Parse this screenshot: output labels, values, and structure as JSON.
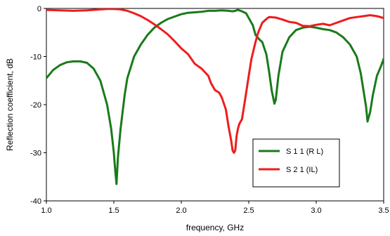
{
  "chart_data": {
    "type": "line",
    "title": "",
    "xlabel": "frequency, GHz",
    "ylabel": "Reflection coefficient, dB",
    "xlim": [
      1.0,
      3.5
    ],
    "ylim": [
      -40,
      0
    ],
    "x_ticks": [
      "1.0",
      "1.5",
      "2.0",
      "2.5",
      "3.0",
      "3.5"
    ],
    "y_ticks": [
      "0",
      "-10",
      "-20",
      "-30",
      "-40"
    ],
    "grid": false,
    "legend_position": "bottom-right inside plot",
    "series": [
      {
        "name": "S 1 1 (R L)",
        "color": "#1a7a1a",
        "x": [
          1.0,
          1.05,
          1.1,
          1.15,
          1.2,
          1.25,
          1.3,
          1.35,
          1.4,
          1.45,
          1.48,
          1.5,
          1.51,
          1.52,
          1.53,
          1.55,
          1.58,
          1.6,
          1.65,
          1.7,
          1.75,
          1.8,
          1.85,
          1.9,
          1.95,
          2.0,
          2.05,
          2.1,
          2.15,
          2.2,
          2.25,
          2.3,
          2.35,
          2.38,
          2.4,
          2.42,
          2.45,
          2.48,
          2.5,
          2.53,
          2.55,
          2.58,
          2.6,
          2.63,
          2.65,
          2.67,
          2.69,
          2.7,
          2.72,
          2.75,
          2.8,
          2.85,
          2.9,
          2.95,
          3.0,
          3.05,
          3.1,
          3.15,
          3.2,
          3.25,
          3.3,
          3.33,
          3.35,
          3.37,
          3.38,
          3.4,
          3.42,
          3.45,
          3.48,
          3.5
        ],
        "y": [
          -14.5,
          -12.8,
          -11.8,
          -11.2,
          -11.0,
          -11.0,
          -11.3,
          -12.5,
          -15.0,
          -20.0,
          -25.0,
          -30.0,
          -33.5,
          -36.5,
          -31.0,
          -25.0,
          -18.0,
          -14.5,
          -10.0,
          -7.5,
          -5.5,
          -4.0,
          -3.0,
          -2.2,
          -1.7,
          -1.2,
          -0.9,
          -0.8,
          -0.7,
          -0.5,
          -0.5,
          -0.4,
          -0.5,
          -0.6,
          -0.5,
          -0.3,
          -0.6,
          -1.0,
          -2.0,
          -3.5,
          -5.5,
          -6.5,
          -7.0,
          -9.5,
          -13.0,
          -17.0,
          -19.8,
          -19.0,
          -14.0,
          -9.0,
          -6.0,
          -4.5,
          -4.0,
          -3.8,
          -4.0,
          -4.3,
          -4.5,
          -5.0,
          -6.0,
          -7.5,
          -10.0,
          -13.5,
          -17.0,
          -20.5,
          -23.5,
          -21.5,
          -18.0,
          -14.0,
          -12.0,
          -10.5
        ]
      },
      {
        "name": "S 2 1 (IL)",
        "color": "#ee1c1c",
        "x": [
          1.0,
          1.1,
          1.2,
          1.3,
          1.4,
          1.45,
          1.5,
          1.55,
          1.6,
          1.65,
          1.7,
          1.75,
          1.8,
          1.85,
          1.9,
          1.95,
          2.0,
          2.05,
          2.1,
          2.15,
          2.2,
          2.22,
          2.25,
          2.28,
          2.3,
          2.33,
          2.35,
          2.37,
          2.38,
          2.39,
          2.4,
          2.41,
          2.42,
          2.43,
          2.45,
          2.47,
          2.5,
          2.52,
          2.55,
          2.57,
          2.6,
          2.63,
          2.65,
          2.7,
          2.75,
          2.8,
          2.85,
          2.9,
          2.95,
          3.0,
          3.05,
          3.1,
          3.15,
          3.2,
          3.25,
          3.3,
          3.35,
          3.4,
          3.45,
          3.5
        ],
        "y": [
          -0.3,
          -0.4,
          -0.5,
          -0.4,
          -0.2,
          -0.1,
          -0.1,
          -0.2,
          -0.5,
          -1.0,
          -1.6,
          -2.4,
          -3.3,
          -4.3,
          -5.4,
          -6.8,
          -8.3,
          -9.5,
          -11.5,
          -12.5,
          -14.0,
          -15.5,
          -17.0,
          -17.5,
          -18.5,
          -21.0,
          -24.5,
          -27.5,
          -29.5,
          -30.0,
          -29.5,
          -26.5,
          -25.0,
          -24.0,
          -23.0,
          -19.5,
          -14.0,
          -10.5,
          -7.0,
          -5.0,
          -3.0,
          -2.2,
          -1.8,
          -1.9,
          -2.3,
          -2.8,
          -3.0,
          -3.6,
          -3.7,
          -3.4,
          -3.2,
          -3.5,
          -3.0,
          -2.5,
          -2.0,
          -1.8,
          -1.6,
          -1.4,
          -1.6,
          -2.0
        ]
      }
    ]
  }
}
